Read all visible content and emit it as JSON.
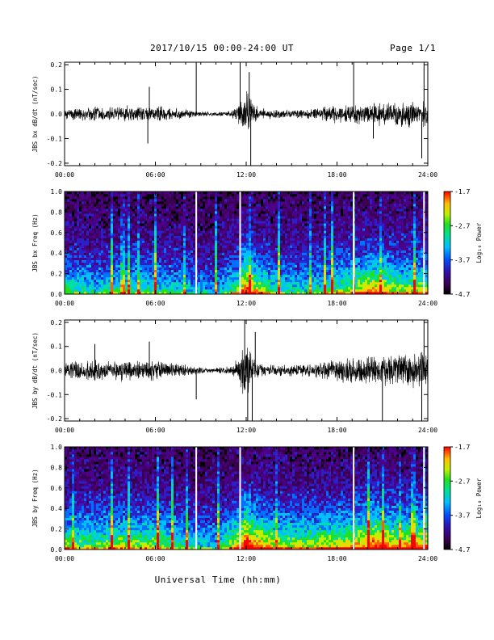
{
  "header": {
    "title": "2017/10/15  00:00-24:00 UT",
    "page": "Page 1/1"
  },
  "footer": {
    "xlabel": "Universal Time (hh:mm)"
  },
  "chart_data": [
    {
      "type": "line",
      "panel_id": "bx-timeseries",
      "ylabel": "JBS bx dB/dt (nT/sec)",
      "xlim": [
        "00:00",
        "24:00"
      ],
      "xticks": [
        "00:00",
        "06:00",
        "12:00",
        "18:00",
        "24:00"
      ],
      "ylim": [
        -0.21,
        0.21
      ],
      "yticks": [
        "-0.2",
        "-0.1",
        "0.0",
        "0.1",
        "0.2"
      ],
      "envelope": {
        "x_hours": [
          0,
          1,
          2,
          3,
          4,
          5,
          6,
          7,
          8,
          9,
          10,
          11,
          11.5,
          12,
          12.5,
          13,
          14,
          15,
          16,
          17,
          18,
          19,
          20,
          21,
          22,
          23,
          24
        ],
        "amplitude": [
          0.025,
          0.03,
          0.035,
          0.03,
          0.04,
          0.035,
          0.04,
          0.03,
          0.02,
          0.012,
          0.01,
          0.015,
          0.05,
          0.12,
          0.05,
          0.025,
          0.02,
          0.018,
          0.022,
          0.03,
          0.04,
          0.045,
          0.05,
          0.055,
          0.06,
          0.06,
          0.055
        ]
      },
      "spikes": [
        {
          "t": 5.5,
          "v": -0.12
        },
        {
          "t": 5.6,
          "v": 0.11
        },
        {
          "t": 8.7,
          "v": 0.21
        },
        {
          "t": 11.6,
          "v": 0.21
        },
        {
          "t": 12.2,
          "v": 0.17
        },
        {
          "t": 12.3,
          "v": -0.21
        },
        {
          "t": 19.1,
          "v": 0.21
        },
        {
          "t": 20.4,
          "v": -0.1
        },
        {
          "t": 23.6,
          "v": -0.18
        },
        {
          "t": 23.75,
          "v": 0.21
        }
      ]
    },
    {
      "type": "heatmap",
      "panel_id": "bx-spectrogram",
      "ylabel": "JBS bx Freq (Hz)",
      "xlim": [
        "00:00",
        "24:00"
      ],
      "xticks": [
        "00:00",
        "06:00",
        "12:00",
        "18:00",
        "24:00"
      ],
      "ylim": [
        0.0,
        1.0
      ],
      "yticks": [
        "0.0",
        "0.2",
        "0.4",
        "0.6",
        "0.8",
        "1.0"
      ],
      "colorbar": {
        "label": "Log₁₀ Power",
        "range": [
          -4.7,
          -1.7
        ],
        "ticks": [
          "-1.7",
          "-2.7",
          "-3.7",
          "-4.7"
        ]
      },
      "data_gaps_hours": [
        8.7,
        11.6,
        19.1,
        23.75
      ],
      "intensity_profile_hours": [
        0,
        2,
        4,
        6,
        8,
        10,
        11.5,
        12,
        12.5,
        14,
        16,
        18,
        19.5,
        20.5,
        22,
        24
      ],
      "intensity_profile": [
        0.35,
        0.3,
        0.38,
        0.35,
        0.28,
        0.2,
        0.45,
        0.75,
        0.55,
        0.35,
        0.3,
        0.4,
        0.5,
        0.6,
        0.45,
        0.5
      ],
      "palette": [
        "#000000",
        "#3a0050",
        "#4a008a",
        "#2b20c8",
        "#0070ff",
        "#00c0ff",
        "#00e0a0",
        "#20e020",
        "#c0f000",
        "#ffd000",
        "#ff6000",
        "#ff0000"
      ]
    },
    {
      "type": "line",
      "panel_id": "by-timeseries",
      "ylabel": "JBS by dB/dt (nT/sec)",
      "xlim": [
        "00:00",
        "24:00"
      ],
      "xticks": [
        "00:00",
        "06:00",
        "12:00",
        "18:00",
        "24:00"
      ],
      "ylim": [
        -0.21,
        0.21
      ],
      "yticks": [
        "-0.2",
        "-0.1",
        "0.0",
        "0.1",
        "0.2"
      ],
      "envelope": {
        "x_hours": [
          0,
          1,
          2,
          3,
          4,
          5,
          6,
          7,
          8,
          9,
          10,
          11,
          11.5,
          12,
          12.5,
          13,
          14,
          15,
          16,
          17,
          18,
          19,
          20,
          21,
          22,
          23,
          24
        ],
        "amplitude": [
          0.035,
          0.045,
          0.05,
          0.04,
          0.05,
          0.045,
          0.05,
          0.035,
          0.025,
          0.015,
          0.012,
          0.02,
          0.06,
          0.14,
          0.06,
          0.03,
          0.025,
          0.025,
          0.03,
          0.04,
          0.05,
          0.06,
          0.07,
          0.075,
          0.08,
          0.085,
          0.08
        ]
      },
      "spikes": [
        {
          "t": 2.0,
          "v": 0.11
        },
        {
          "t": 5.6,
          "v": 0.12
        },
        {
          "t": 8.7,
          "v": -0.12
        },
        {
          "t": 11.9,
          "v": 0.21
        },
        {
          "t": 12.1,
          "v": -0.21
        },
        {
          "t": 12.4,
          "v": -0.21
        },
        {
          "t": 12.6,
          "v": 0.16
        },
        {
          "t": 21.0,
          "v": -0.2
        },
        {
          "t": 23.6,
          "v": -0.21
        },
        {
          "t": 23.75,
          "v": 0.21
        }
      ]
    },
    {
      "type": "heatmap",
      "panel_id": "by-spectrogram",
      "ylabel": "JBS by Freq (Hz)",
      "xlim": [
        "00:00",
        "24:00"
      ],
      "xticks": [
        "00:00",
        "06:00",
        "12:00",
        "18:00",
        "24:00"
      ],
      "ylim": [
        0.0,
        1.0
      ],
      "yticks": [
        "0.0",
        "0.2",
        "0.4",
        "0.6",
        "0.8",
        "1.0"
      ],
      "colorbar": {
        "label": "Log₁₀ Power",
        "range": [
          -4.7,
          -1.7
        ],
        "ticks": [
          "-1.7",
          "-2.7",
          "-3.7",
          "-4.7"
        ]
      },
      "data_gaps_hours": [
        8.7,
        11.6,
        19.1,
        23.75
      ],
      "intensity_profile_hours": [
        0,
        2,
        4,
        6,
        8,
        10,
        11.5,
        12,
        12.5,
        14,
        16,
        18,
        19.5,
        20.5,
        22,
        24
      ],
      "intensity_profile": [
        0.45,
        0.42,
        0.48,
        0.45,
        0.35,
        0.28,
        0.55,
        0.85,
        0.65,
        0.5,
        0.48,
        0.52,
        0.6,
        0.7,
        0.55,
        0.6
      ],
      "palette": [
        "#000000",
        "#3a0050",
        "#4a008a",
        "#2b20c8",
        "#0070ff",
        "#00c0ff",
        "#00e0a0",
        "#20e020",
        "#c0f000",
        "#ffd000",
        "#ff6000",
        "#ff0000"
      ]
    }
  ]
}
